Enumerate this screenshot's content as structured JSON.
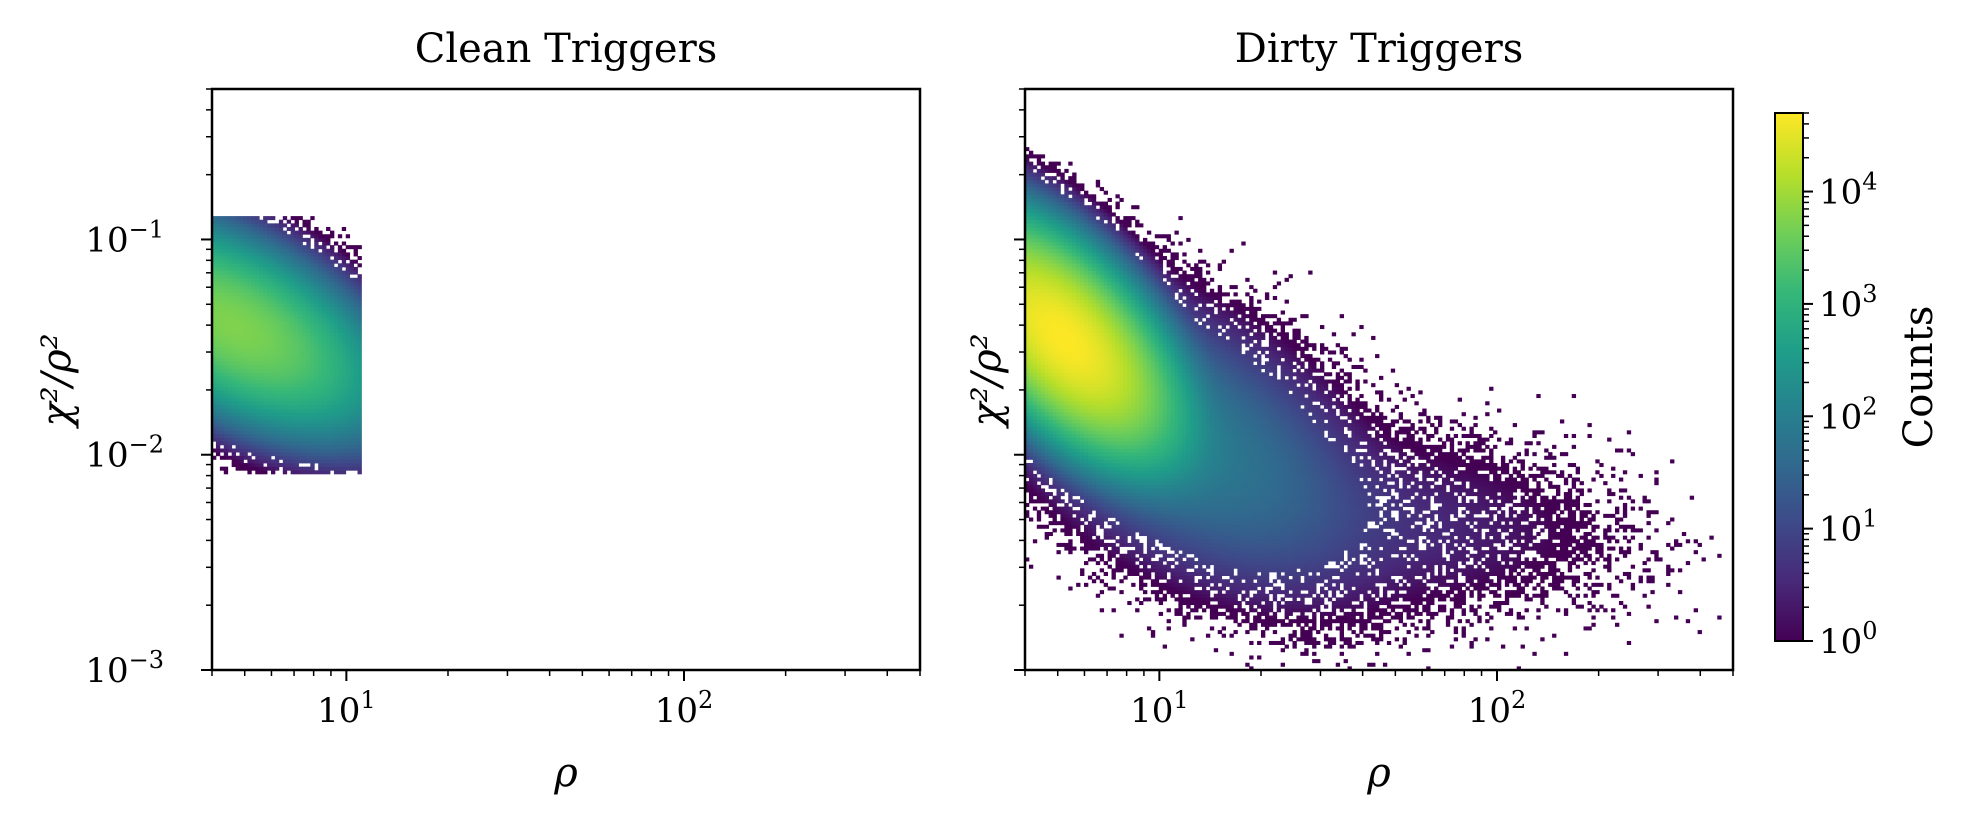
{
  "chart_data": [
    {
      "type": "heatmap",
      "title": "Clean Triggers",
      "xlabel": "ρ",
      "ylabel": "χ²/ρ²",
      "x_scale": "log",
      "y_scale": "log",
      "xlim": [
        4,
        500
      ],
      "ylim": [
        0.001,
        0.5
      ],
      "x_ticks": [
        10,
        100
      ],
      "x_tick_labels": [
        {
          "base": "10",
          "exp": "1"
        },
        {
          "base": "10",
          "exp": "2"
        }
      ],
      "y_ticks": [
        0.001,
        0.01,
        0.1
      ],
      "y_tick_labels": [
        {
          "base": "10",
          "exp": "−3"
        },
        {
          "base": "10",
          "exp": "−2"
        },
        {
          "base": "10",
          "exp": "−1"
        }
      ],
      "density_clusters": [
        {
          "rho_center": 4.6,
          "chi_center": 0.04,
          "rho_spread": 0.16,
          "chi_spread": 0.18,
          "peak_counts": 6000,
          "corr": -0.55
        }
      ],
      "x_extent": [
        4,
        11
      ],
      "y_extent": [
        0.008,
        0.13
      ],
      "grid": false
    },
    {
      "type": "heatmap",
      "title": "Dirty Triggers",
      "xlabel": "ρ",
      "ylabel": "χ²/ρ²",
      "x_scale": "log",
      "y_scale": "log",
      "xlim": [
        4,
        500
      ],
      "ylim": [
        0.001,
        0.5
      ],
      "x_ticks": [
        10,
        100
      ],
      "x_tick_labels": [
        {
          "base": "10",
          "exp": "1"
        },
        {
          "base": "10",
          "exp": "2"
        }
      ],
      "y_ticks": [
        0.001,
        0.01,
        0.1
      ],
      "density_clusters": [
        {
          "rho_center": 5.2,
          "chi_center": 0.035,
          "rho_spread": 0.12,
          "chi_spread": 0.2,
          "peak_counts": 50000,
          "corr": -0.6
        },
        {
          "rho_center": 12,
          "chi_center": 0.012,
          "rho_spread": 0.22,
          "chi_spread": 0.28,
          "peak_counts": 80,
          "corr": -0.5
        },
        {
          "rho_center": 40,
          "chi_center": 0.005,
          "rho_spread": 0.35,
          "chi_spread": 0.2,
          "peak_counts": 4,
          "corr": -0.2
        }
      ],
      "x_extent": [
        4,
        480
      ],
      "y_extent": [
        0.001,
        0.5
      ],
      "grid": false
    }
  ],
  "colorbar": {
    "label": "Counts",
    "scale": "log",
    "range": [
      1,
      50000
    ],
    "ticks": [
      1,
      10,
      100,
      1000,
      10000
    ],
    "tick_labels": [
      {
        "base": "10",
        "exp": "0"
      },
      {
        "base": "10",
        "exp": "1"
      },
      {
        "base": "10",
        "exp": "2"
      },
      {
        "base": "10",
        "exp": "3"
      },
      {
        "base": "10",
        "exp": "4"
      }
    ],
    "colormap": "viridis",
    "colors": [
      "#440154",
      "#482878",
      "#3e4989",
      "#31688e",
      "#26828e",
      "#1f9e89",
      "#35b779",
      "#6ece58",
      "#b5de2b",
      "#fde725"
    ]
  }
}
